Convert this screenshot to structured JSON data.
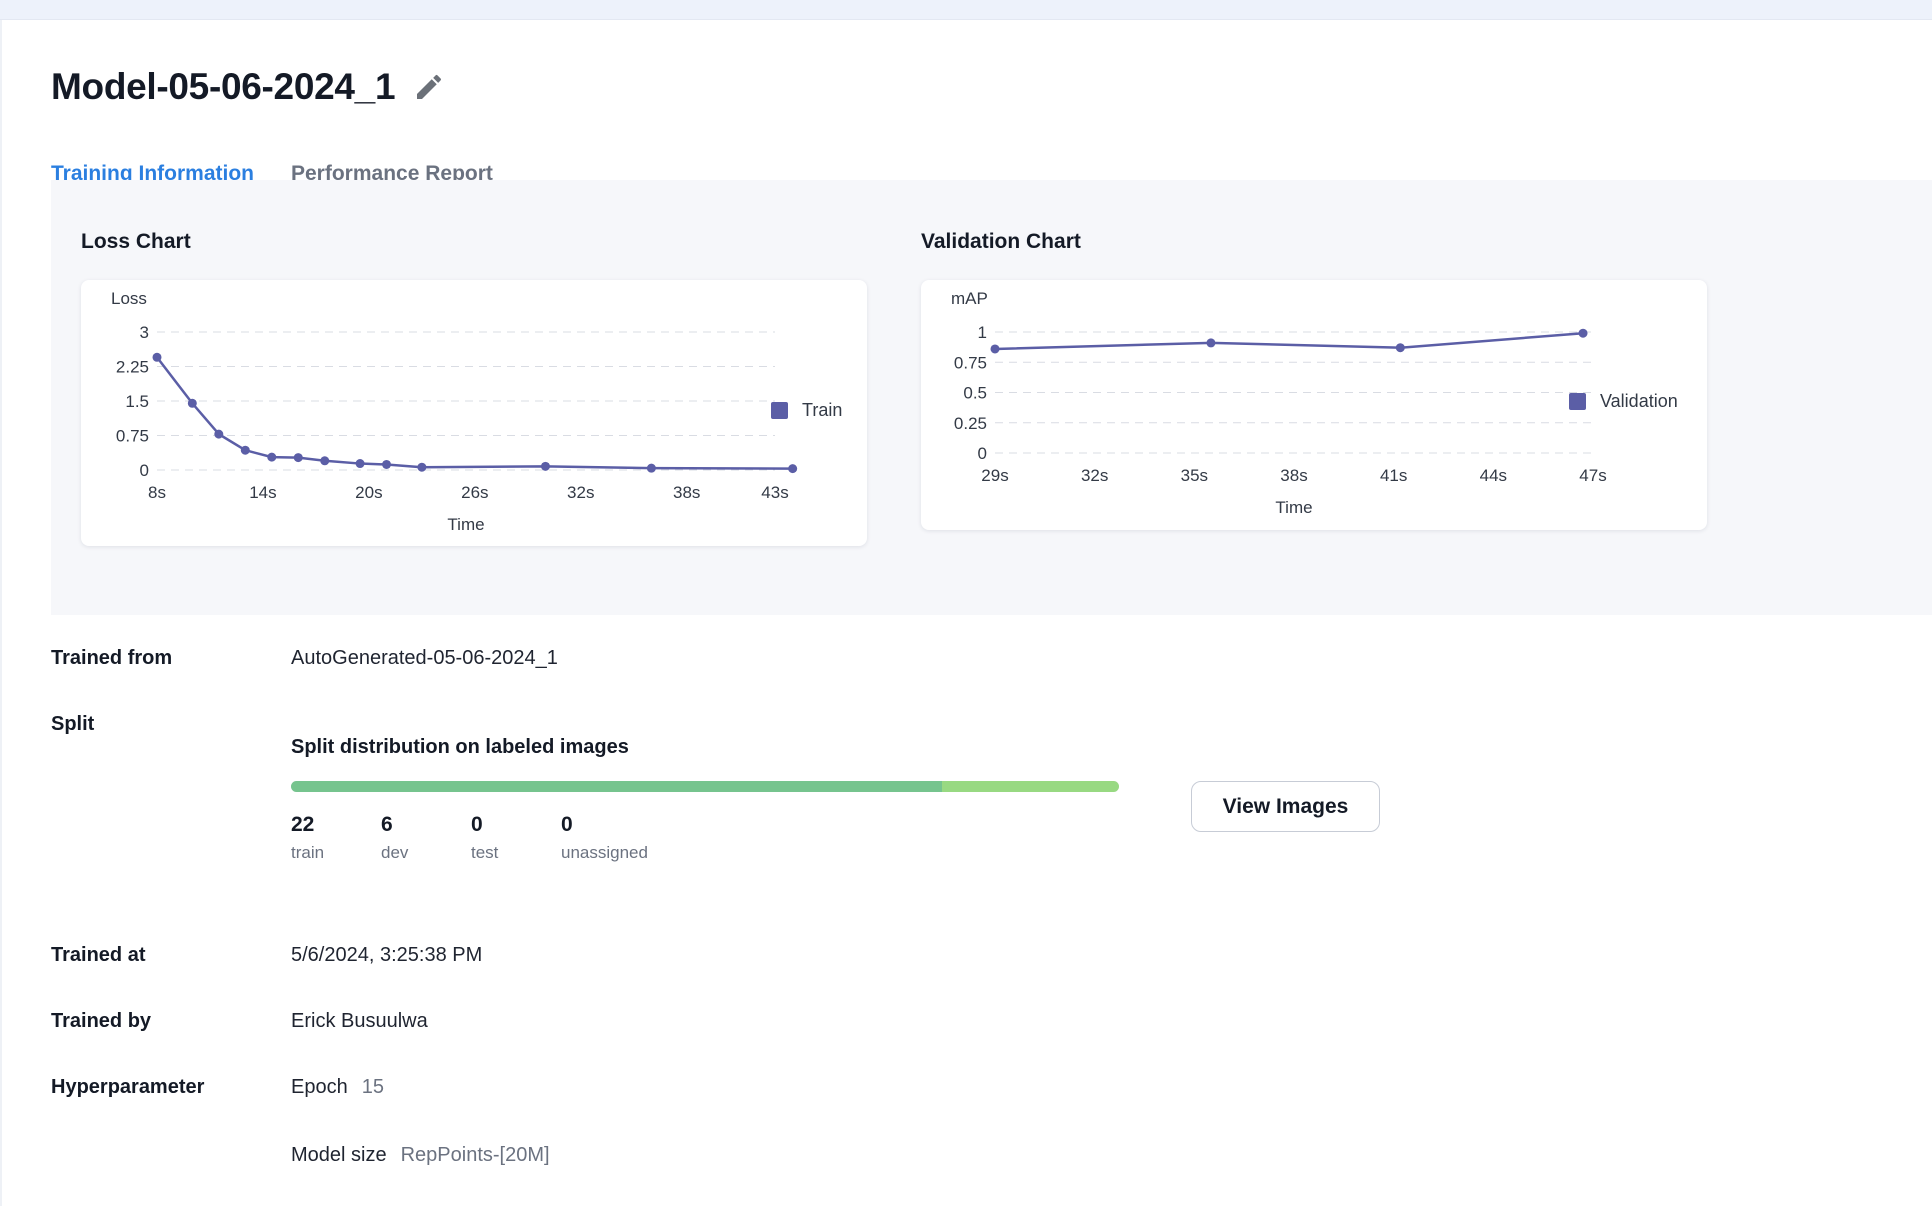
{
  "page": {
    "title": "Model-05-06-2024_1",
    "edit_icon": "pencil-icon"
  },
  "tabs": [
    {
      "label": "Training Information",
      "active": true
    },
    {
      "label": "Performance Report",
      "active": false
    }
  ],
  "colors": {
    "accent": "#2b7fe0",
    "series": "#5b5ea6",
    "split_train": "#76c48e",
    "split_dev": "#98d982"
  },
  "chart_data": [
    {
      "type": "line",
      "title": "Loss Chart",
      "ylabel": "Loss",
      "xlabel": "Time",
      "ylim": [
        0,
        3
      ],
      "xlim": [
        8,
        43
      ],
      "yticks": [
        0,
        0.75,
        1.5,
        2.25,
        3
      ],
      "ytick_labels": [
        "0",
        "0.75",
        "1.5",
        "2.25",
        "3"
      ],
      "xticks": [
        8,
        14,
        20,
        26,
        32,
        38,
        43
      ],
      "xtick_labels": [
        "8s",
        "14s",
        "20s",
        "26s",
        "32s",
        "38s",
        "43s"
      ],
      "grid": true,
      "legend": "right",
      "series": [
        {
          "name": "Train",
          "x": [
            8,
            10,
            11.5,
            13,
            14.5,
            16,
            17.5,
            19.5,
            21,
            23,
            30,
            36,
            44
          ],
          "y": [
            2.45,
            1.45,
            0.78,
            0.43,
            0.28,
            0.27,
            0.2,
            0.14,
            0.12,
            0.06,
            0.08,
            0.04,
            0.03
          ]
        }
      ]
    },
    {
      "type": "line",
      "title": "Validation Chart",
      "ylabel": "mAP",
      "xlabel": "Time",
      "ylim": [
        0,
        1
      ],
      "xlim": [
        29,
        47
      ],
      "yticks": [
        0,
        0.25,
        0.5,
        0.75,
        1
      ],
      "ytick_labels": [
        "0",
        "0.25",
        "0.5",
        "0.75",
        "1"
      ],
      "xticks": [
        29,
        32,
        35,
        38,
        41,
        44,
        47
      ],
      "xtick_labels": [
        "29s",
        "32s",
        "35s",
        "38s",
        "41s",
        "44s",
        "47s"
      ],
      "grid": true,
      "legend": "right",
      "series": [
        {
          "name": "Validation",
          "x": [
            29,
            35.5,
            41.2,
            46.7
          ],
          "y": [
            0.86,
            0.91,
            0.87,
            0.99
          ]
        }
      ]
    }
  ],
  "info": {
    "trained_from_label": "Trained from",
    "trained_from_value": "AutoGenerated-05-06-2024_1",
    "split_label": "Split",
    "trained_at_label": "Trained at",
    "trained_at_value": "5/6/2024, 3:25:38 PM",
    "trained_by_label": "Trained by",
    "trained_by_value": "Erick Busuulwa",
    "hyperparameter_label": "Hyperparameter",
    "hyperparameters": [
      {
        "key": "Epoch",
        "value": "15"
      },
      {
        "key": "Model size",
        "value": "RepPoints-[20M]"
      }
    ]
  },
  "split": {
    "title": "Split distribution on labeled images",
    "train_fraction": 0.786,
    "dev_fraction": 0.214,
    "stats": [
      {
        "value": "22",
        "label": "train"
      },
      {
        "value": "6",
        "label": "dev"
      },
      {
        "value": "0",
        "label": "test"
      },
      {
        "value": "0",
        "label": "unassigned"
      }
    ],
    "view_button": "View Images"
  }
}
